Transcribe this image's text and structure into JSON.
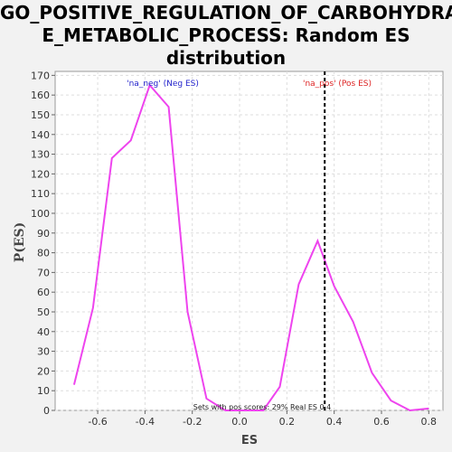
{
  "chart_data": {
    "type": "line",
    "title_lines": [
      "GO_POSITIVE_REGULATION_OF_CARBOHYDRAT",
      "E_METABOLIC_PROCESS: Random ES",
      "distribution"
    ],
    "xlabel": "ES",
    "ylabel": "P(ES)",
    "xlim": [
      -0.78,
      0.86
    ],
    "ylim": [
      0,
      172
    ],
    "xticks": [
      "-0.6",
      "-0.4",
      "-0.2",
      "0.0",
      "0.2",
      "0.4",
      "0.6",
      "0.8"
    ],
    "xtick_values": [
      -0.6,
      -0.4,
      -0.2,
      0.0,
      0.2,
      0.4,
      0.6,
      0.8
    ],
    "yticks": [
      "0",
      "10",
      "20",
      "30",
      "40",
      "50",
      "60",
      "70",
      "80",
      "90",
      "100",
      "110",
      "120",
      "130",
      "140",
      "150",
      "160",
      "170"
    ],
    "ytick_values": [
      0,
      10,
      20,
      30,
      40,
      50,
      60,
      70,
      80,
      90,
      100,
      110,
      120,
      130,
      140,
      150,
      160,
      170
    ],
    "grid": true,
    "series": [
      {
        "color": "#ee44ee",
        "x": [
          -0.7,
          -0.62,
          -0.54,
          -0.46,
          -0.38,
          -0.3,
          -0.22,
          -0.14,
          -0.06,
          0.02,
          0.1,
          0.17,
          0.25,
          0.33,
          0.4,
          0.48,
          0.56,
          0.64,
          0.72,
          0.8
        ],
        "y": [
          13,
          52,
          128,
          137,
          165,
          154,
          50,
          6,
          0,
          0,
          0,
          12,
          64,
          86,
          63,
          45,
          19,
          5,
          0,
          1
        ]
      }
    ],
    "marker": {
      "x": 0.36,
      "color": "#000000"
    },
    "annotations": {
      "neg_label": "'na_neg' (Neg ES)",
      "neg_color": "#2222cc",
      "pos_label": "'na_pos' (Pos ES)",
      "pos_color": "#dd2222",
      "footer": "Sets with pos scores: 29%  Real ES 0.4"
    }
  }
}
